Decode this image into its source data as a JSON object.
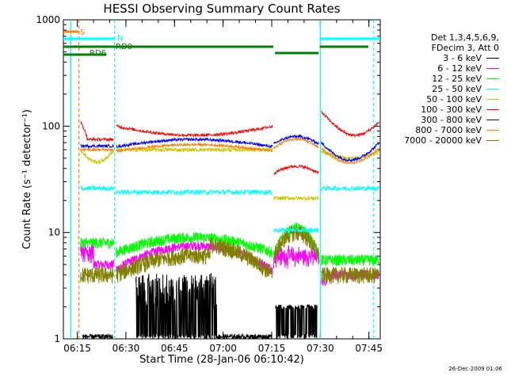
{
  "chart_data": {
    "type": "line",
    "title": "HESSI Observing Summary Count Rates",
    "xlabel": "Start Time (28-Jan-06 06:10:42)",
    "ylabel": "Count Rate (s⁻¹ detector⁻¹)",
    "y_scale": "log",
    "ylim": [
      1,
      1000
    ],
    "xlim": [
      "06:10:42",
      "07:48:30"
    ],
    "x_ticks": [
      "06:15",
      "06:30",
      "06:45",
      "07:00",
      "07:15",
      "07:30",
      "07:45"
    ],
    "y_ticks": [
      "1",
      "10",
      "100",
      "1000"
    ],
    "legend_header": [
      "Det 1,3,4,5,6,9,",
      "FDecim 3, Att 0"
    ],
    "legend_placement": "right",
    "grid": false,
    "flags": [
      {
        "label": "S",
        "color": "#ff8000"
      },
      {
        "label": "N",
        "color": "#00ffff"
      },
      {
        "label": "RD0",
        "color": "#008000"
      },
      {
        "label": "RD6",
        "color": "#008000"
      }
    ],
    "series": [
      {
        "name": "3 - 6 keV",
        "color": "#000000"
      },
      {
        "name": "6 - 12 keV",
        "color": "#ff00ff"
      },
      {
        "name": "12 - 25 keV",
        "color": "#00ff00"
      },
      {
        "name": "25 - 50 keV",
        "color": "#00ffff"
      },
      {
        "name": "50 - 100 keV",
        "color": "#c8c800"
      },
      {
        "name": "100 - 300 keV",
        "color": "#ff0000"
      },
      {
        "name": "300 - 800 keV",
        "color": "#0000ff"
      },
      {
        "name": "800 - 7000 keV",
        "color": "#ff8000"
      },
      {
        "name": "7000 - 20000 keV",
        "color": "#808000"
      }
    ]
  },
  "footer_date": "26-Dec-2009 01:06"
}
